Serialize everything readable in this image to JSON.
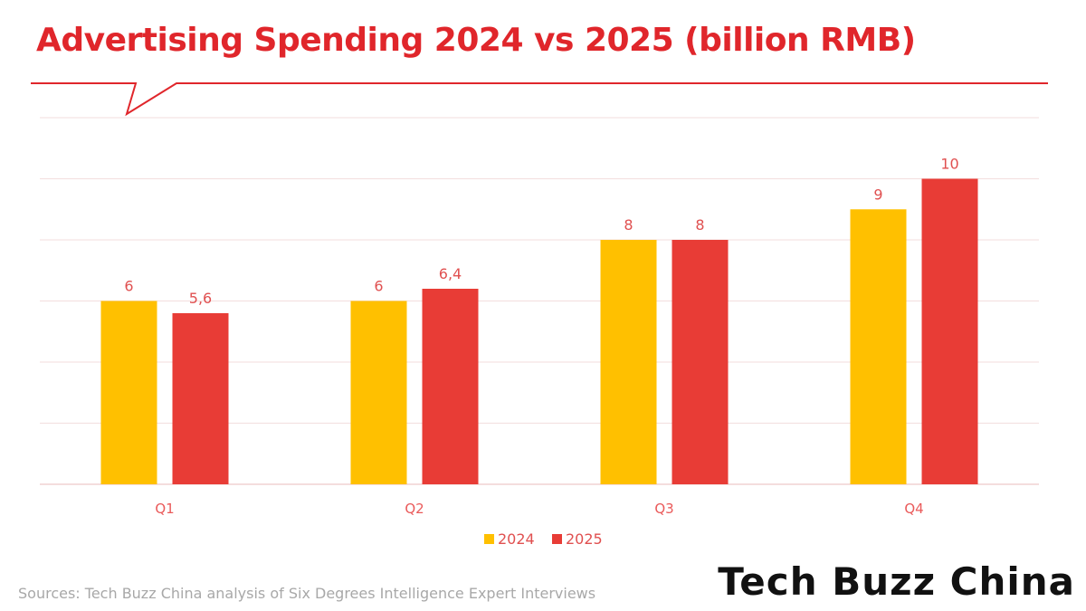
{
  "chart_data": {
    "type": "bar",
    "title": "Advertising Spending 2024 vs 2025 (billion RMB)",
    "categories": [
      "Q1",
      "Q2",
      "Q3",
      "Q4"
    ],
    "series": [
      {
        "name": "2024",
        "values": [
          6,
          6,
          8,
          9
        ],
        "labels": [
          "6",
          "6",
          "8",
          "9"
        ]
      },
      {
        "name": "2025",
        "values": [
          5.6,
          6.4,
          8,
          10
        ],
        "labels": [
          "5,6",
          "6,4",
          "8",
          "10"
        ]
      }
    ],
    "ylim": [
      0,
      12
    ],
    "ytick_step": 2,
    "grid": true,
    "legend": "bottom-center",
    "xlabel": "",
    "ylabel": ""
  },
  "colors": {
    "series_2024": "#ffc000",
    "series_2025": "#e83c36",
    "accent": "#e0262b",
    "grid": "#f3dede",
    "axis": "#f0d2d2"
  },
  "footer": {
    "source": "Sources: Tech Buzz China analysis of Six Degrees Intelligence Expert Interviews",
    "brand": "Tech Buzz China"
  }
}
